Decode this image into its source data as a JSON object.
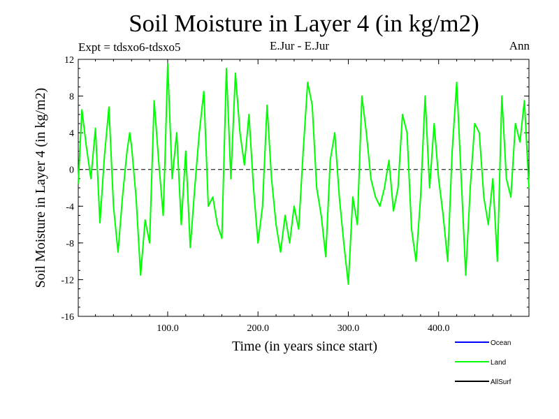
{
  "title": "Soil Moisture in Layer 4 (in kg/m2)",
  "subtitle_left": "Expt = tdsxo6-tdsxo5",
  "subtitle_center": "E.Jur - E.Jur",
  "subtitle_right": "Ann",
  "chart_data": {
    "type": "line",
    "title": "Soil Moisture in Layer 4 (in kg/m2)",
    "xlabel": "Time (in years since start)",
    "ylabel": "Soil Moisture in Layer 4 (in kg/m2)",
    "xlim": [
      1,
      500
    ],
    "ylim": [
      -16,
      12
    ],
    "xticks": [
      100,
      200,
      300,
      400
    ],
    "xtick_labels": [
      "100.0",
      "200.0",
      "300.0",
      "400.0"
    ],
    "yticks": [
      12,
      8,
      4,
      0,
      -4,
      -8,
      -12,
      -16
    ],
    "ytick_labels": [
      "12",
      "8",
      "4",
      "0",
      "-4",
      "-8",
      "-12",
      "-16"
    ],
    "zero_line": 0,
    "legend": [
      {
        "name": "Ocean",
        "color": "#0000ff"
      },
      {
        "name": "Land",
        "color": "#00ff00"
      },
      {
        "name": "AllSurf",
        "color": "#000000"
      }
    ],
    "series": [
      {
        "name": "Land",
        "color": "#00ff00",
        "x": [
          1,
          5,
          10,
          15,
          20,
          25,
          30,
          35,
          40,
          45,
          50,
          55,
          58,
          60,
          65,
          70,
          75,
          80,
          85,
          90,
          95,
          97,
          100,
          105,
          110,
          115,
          120,
          125,
          130,
          135,
          140,
          145,
          150,
          155,
          160,
          165,
          170,
          175,
          180,
          185,
          190,
          195,
          200,
          205,
          210,
          215,
          220,
          225,
          230,
          235,
          240,
          245,
          250,
          255,
          260,
          265,
          270,
          275,
          280,
          285,
          290,
          295,
          300,
          305,
          310,
          315,
          320,
          325,
          330,
          335,
          340,
          345,
          350,
          355,
          360,
          365,
          370,
          375,
          380,
          385,
          390,
          395,
          400,
          405,
          410,
          415,
          420,
          425,
          430,
          435,
          440,
          445,
          450,
          455,
          460,
          465,
          470,
          475,
          480,
          485,
          490,
          495,
          500
        ],
        "values": [
          -1.5,
          6.5,
          2.5,
          -1,
          4.5,
          -5.8,
          1.5,
          6.8,
          -4,
          -9,
          -3,
          2,
          4,
          2.5,
          -3,
          -11.5,
          -5.5,
          -8,
          7.5,
          1,
          -5,
          1,
          11.5,
          -1,
          4,
          -6,
          2,
          -8.5,
          -2,
          4,
          8.5,
          -4,
          -3,
          -6,
          -7.5,
          11,
          -1,
          10.5,
          4,
          0.5,
          6,
          -2,
          -8,
          -4,
          7,
          -1,
          -6,
          -9,
          -5,
          -8,
          -4,
          -6.5,
          2,
          9.5,
          7,
          -2,
          -5,
          -9.5,
          1,
          4,
          -3,
          -8,
          -12.5,
          -3,
          -6,
          8,
          4,
          -1,
          -3,
          -4,
          -2,
          1,
          -4.5,
          -2,
          6,
          4,
          -6.5,
          -10,
          -3,
          8,
          -2,
          5,
          -1,
          -5,
          -10,
          2,
          9.5,
          -1,
          -11.5,
          -2,
          5,
          4,
          -3,
          -6,
          -1,
          -10,
          8,
          -1,
          -3,
          5,
          3,
          7.5,
          -2
        ]
      }
    ]
  }
}
